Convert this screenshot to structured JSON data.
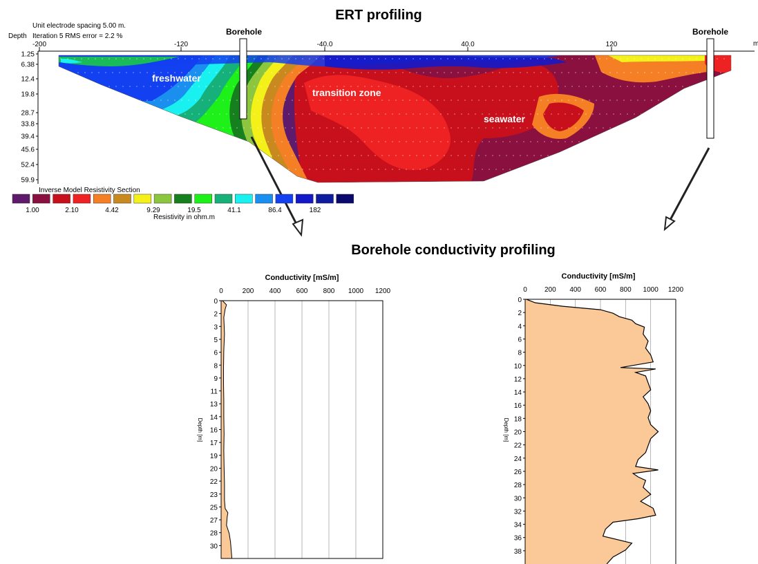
{
  "ert": {
    "title": "ERT profiling",
    "info_line1": "Unit electrode spacing 5.00 m.",
    "info_line2": "Iteration 5 RMS error = 2.2 %",
    "depth_label": "Depth",
    "x_ticks": [
      "-200",
      "-120",
      "-40.0",
      "40.0",
      "120"
    ],
    "x_unit": "m",
    "depth_ticks": [
      "1.25",
      "6.38",
      "12.4",
      "19.8",
      "28.7",
      "33.8",
      "39.4",
      "45.6",
      "52.4",
      "59.9"
    ],
    "borehole_label": "Borehole",
    "zones": [
      "freshwater",
      "transition zone",
      "seawater"
    ],
    "legend_title": "Inverse Model Resistivity Section",
    "legend_caption": "Resistivity in ohm.m",
    "legend_labels": [
      "1.00",
      "2.10",
      "4.42",
      "9.29",
      "19.5",
      "41.1",
      "86.4",
      "182"
    ],
    "colors": [
      "#5e1a6b",
      "#8a1040",
      "#c8101c",
      "#ee2222",
      "#f57f24",
      "#c88a1e",
      "#f4f01a",
      "#8cc63e",
      "#17801e",
      "#1ef01a",
      "#16b07a",
      "#19f0f0",
      "#1a8ff0",
      "#1340f0",
      "#1419c8",
      "#101c9e",
      "#0a0a6e"
    ]
  },
  "borehole": {
    "title": "Borehole conductivity profiling",
    "left_chart": {
      "xlabel": "Conductivity [mS/m]",
      "ylabel": "Depth [m]",
      "x_ticks": [
        "0",
        "200",
        "400",
        "600",
        "800",
        "1000",
        "1200"
      ],
      "y_ticks": [
        "0",
        "2",
        "3",
        "5",
        "6",
        "8",
        "9",
        "11",
        "13",
        "14",
        "16",
        "17",
        "19",
        "20",
        "22",
        "23",
        "25",
        "27",
        "28",
        "30"
      ]
    },
    "right_chart": {
      "xlabel": "Conductivity [mS/m]",
      "ylabel": "Depth [m]",
      "x_ticks": [
        "0",
        "200",
        "400",
        "600",
        "800",
        "1000",
        "1200"
      ],
      "y_ticks": [
        "0",
        "2",
        "4",
        "6",
        "8",
        "10",
        "12",
        "14",
        "16",
        "18",
        "20",
        "22",
        "24",
        "26",
        "28",
        "30",
        "32",
        "34",
        "36",
        "38"
      ]
    }
  },
  "chart_data": [
    {
      "type": "area",
      "xlabel": "Conductivity [mS/m]",
      "ylabel": "Depth [m]",
      "xlim": [
        0,
        1200
      ],
      "ylim": [
        0,
        31
      ],
      "depth": [
        0,
        0.5,
        1,
        2,
        4,
        6,
        8,
        10,
        12,
        14,
        16,
        18,
        20,
        22,
        24,
        25,
        25.5,
        26,
        27,
        28,
        29,
        30,
        31
      ],
      "conductivity": [
        10,
        40,
        30,
        20,
        25,
        20,
        18,
        18,
        20,
        20,
        22,
        20,
        22,
        25,
        25,
        30,
        50,
        45,
        40,
        60,
        70,
        75,
        80
      ]
    },
    {
      "type": "area",
      "xlabel": "Conductivity [mS/m]",
      "ylabel": "Depth [m]",
      "xlim": [
        0,
        1200
      ],
      "ylim": [
        0,
        38
      ],
      "depth": [
        0,
        0.5,
        1,
        1.5,
        2,
        2.5,
        3,
        3.5,
        4,
        5,
        6,
        7,
        8,
        9,
        9.8,
        10,
        10.5,
        11,
        12,
        13,
        14,
        15,
        16,
        17,
        18,
        19,
        20,
        21,
        22,
        23,
        24,
        24.5,
        25,
        25.5,
        26,
        27,
        28,
        29,
        30,
        31,
        31.5,
        32,
        33,
        34,
        35,
        36,
        37,
        38
      ],
      "conductivity": [
        10,
        80,
        300,
        600,
        700,
        750,
        850,
        880,
        950,
        940,
        980,
        960,
        1000,
        1020,
        760,
        1040,
        880,
        960,
        980,
        1000,
        940,
        980,
        1000,
        980,
        1000,
        1060,
        1000,
        980,
        960,
        900,
        880,
        1060,
        860,
        900,
        960,
        940,
        1000,
        920,
        1020,
        1040,
        900,
        700,
        640,
        620,
        850,
        800,
        700,
        650
      ]
    }
  ]
}
